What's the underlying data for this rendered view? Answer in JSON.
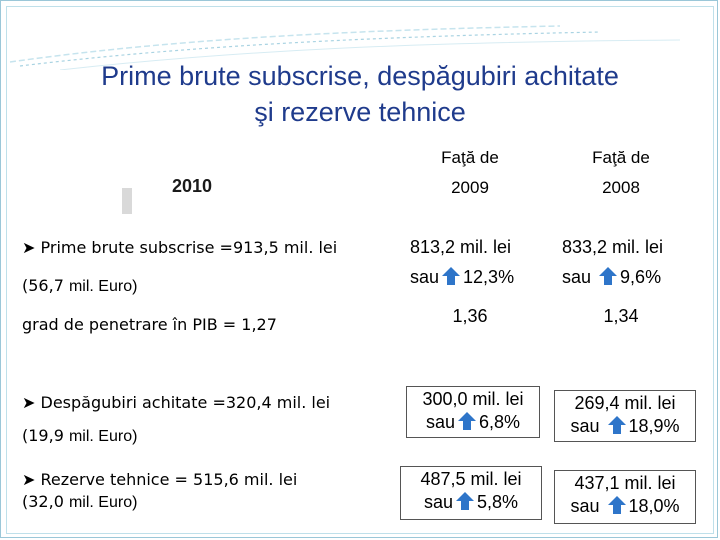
{
  "title_line1": "Prime brute subscrise, despăgubiri achitate",
  "title_line2": "şi rezerve tehnice",
  "year_label": "2010",
  "columns": [
    {
      "line1": "Faţă de",
      "line2": "2009"
    },
    {
      "line1": "Faţă de",
      "line2": "2008"
    }
  ],
  "rows": {
    "prime": {
      "label": "Prime brute subscrise =913,5 mil. lei",
      "sub_value": "(56,7",
      "sub_unit": "mil. Euro)",
      "c2009_line1": "813,2 mil. lei",
      "c2009_sau": "sau",
      "c2009_pct": "12,3%",
      "c2008_line1": "833,2 mil. lei",
      "c2008_sau": "sau",
      "c2008_pct": "9,6%"
    },
    "penetrare": {
      "label": "grad de penetrare în PIB = 1,27",
      "c2009": "1,36",
      "c2008": "1,34"
    },
    "despagubiri": {
      "label": "Despăgubiri achitate =320,4 mil. lei",
      "sub_value": "(19,9",
      "sub_unit": "mil. Euro)",
      "c2009_line1": "300,0 mil. lei",
      "c2009_sau": "sau",
      "c2009_pct": "6,8%",
      "c2008_line1": "269,4 mil. lei",
      "c2008_sau": "sau",
      "c2008_pct": "18,9%"
    },
    "rezerve": {
      "label": "Rezerve tehnice = 515,6 mil. lei",
      "sub_value": "(32,0",
      "sub_unit": "mil. Euro)",
      "c2009_line1": "487,5 mil. lei",
      "c2009_sau": "sau",
      "c2009_pct": "5,8%",
      "c2008_line1": "437,1 mil. lei",
      "c2008_sau": "sau",
      "c2008_pct": "18,0%"
    }
  },
  "colors": {
    "title": "#1f3b8c",
    "arrow": "#2e75c9",
    "frame": "#9bc7d8"
  },
  "icons": {
    "bullet": "arrow-bullet-icon",
    "up": "up-arrow-icon"
  }
}
